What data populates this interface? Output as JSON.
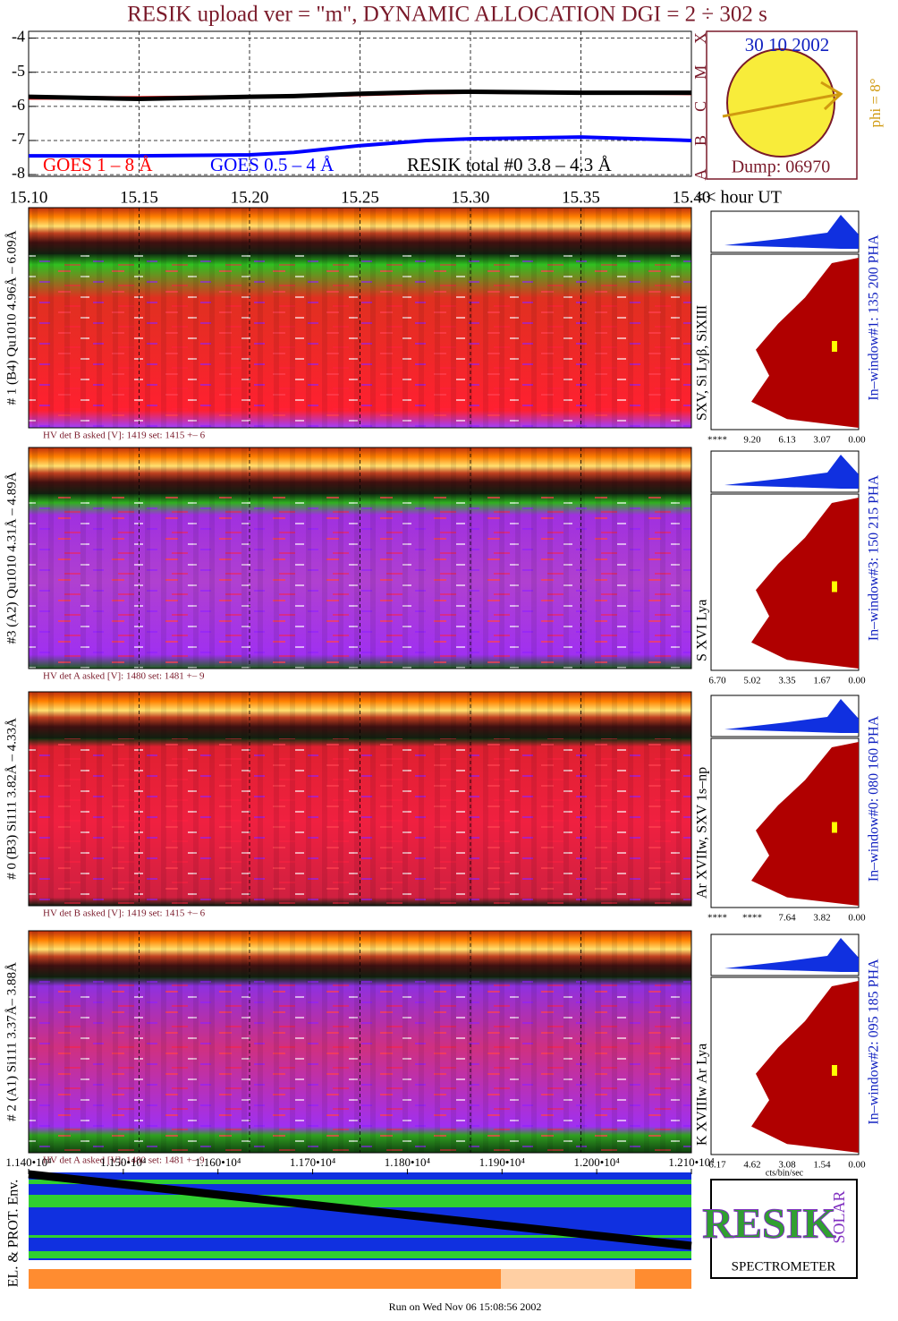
{
  "title": "RESIK upload ver = \"m\", DYNAMIC ALLOCATION  DGI =   2 ÷ 302 s",
  "chart_data": {
    "type": "line",
    "x": [
      15.1,
      15.15,
      15.2,
      15.22,
      15.25,
      15.28,
      15.3,
      15.35,
      15.4
    ],
    "xlim": [
      15.1,
      15.4
    ],
    "xticks": [
      {
        "value": 15.1,
        "label": "15.10"
      },
      {
        "value": 15.15,
        "label": "15.15"
      },
      {
        "value": 15.2,
        "label": "15.20"
      },
      {
        "value": 15.25,
        "label": "15.25"
      },
      {
        "value": 15.3,
        "label": "15.30"
      },
      {
        "value": 15.35,
        "label": "15.35"
      },
      {
        "value": 15.4,
        "label": "15.40"
      }
    ],
    "x_label": "<< hour UT",
    "ylim": [
      -8.05,
      -3.8
    ],
    "yticks": [
      -4,
      -5,
      -6,
      -7,
      -8
    ],
    "grid": true,
    "series": [
      {
        "name": "GOES 1 – 8 Å",
        "color": "#ff0000",
        "values": [
          -5.75,
          -5.75,
          -5.72,
          -5.7,
          -5.65,
          -5.6,
          -5.58,
          -5.6,
          -5.62
        ]
      },
      {
        "name": "GOES 0.5 – 4 Å",
        "color": "#0000ff",
        "values": [
          -7.45,
          -7.45,
          -7.42,
          -7.35,
          -7.15,
          -7.0,
          -6.95,
          -6.9,
          -7.0
        ]
      },
      {
        "name": "RESIK total #0  3.8 – 4.3 Å",
        "color": "#000000",
        "values": [
          -5.72,
          -5.78,
          -5.72,
          -5.7,
          -5.63,
          -5.58,
          -5.57,
          -5.6,
          -5.6
        ]
      }
    ]
  },
  "sun": {
    "date": "30 10 2002",
    "dump": "Dump: 06970",
    "phi": "phi =  8°",
    "classes": [
      "A",
      "B",
      "C",
      "M",
      "X"
    ]
  },
  "detectors": [
    {
      "label": "# 1 (B4) Qu1010 4.96Å – 6.09Å",
      "lines": "SXV, Si Lyβ, SiXIII",
      "hv": "HV det B asked [V]:  1419 set:  1415 +–    6",
      "hist_ticks": [
        "****",
        "9.20",
        "6.13",
        "3.07",
        "0.00"
      ],
      "window": "In–window#1:  135 200 PHA"
    },
    {
      "label": "#3 (A2) Qu1010  4.31Å – 4.89Å",
      "lines": "S XVI Lya",
      "hv": "HV det A asked [V]:  1480 set:  1481 +–    9",
      "hist_ticks": [
        "6.70",
        "5.02",
        "3.35",
        "1.67",
        "0.00"
      ],
      "window": "In–window#3:  150 215 PHA"
    },
    {
      "label": "# 0 (B3) Si111  3.82Å – 4.33Å",
      "lines": "Ar XVIIw,  SXV 1s–np",
      "hv": "HV det B asked [V]:  1419 set:  1415 +–    6",
      "hist_ticks": [
        "****",
        "****",
        "7.64",
        "3.82",
        "0.00"
      ],
      "window": "In–window#0:  080 160 PHA"
    },
    {
      "label": "# 2 (A1) Si111  3.37Å– 3.88Å",
      "lines": "K XVIIIw  Ar Lya",
      "hv": "HV det A asked [V]:  1480 set:  1481 +–    9",
      "hist_ticks": [
        "6.17",
        "4.62",
        "3.08",
        "1.54",
        "0.00"
      ],
      "window": "In–window#2:  095 185 PHA"
    }
  ],
  "hist_unit": "cts/bin/sec",
  "env": {
    "label": "EL. & PROT. Env.",
    "xlim": [
      11400,
      12100
    ],
    "xticks": [
      {
        "value": 11400,
        "label": "1.140•10⁴"
      },
      {
        "value": 11500,
        "label": "1.150•10⁴"
      },
      {
        "value": 11600,
        "label": "1.160•10⁴"
      },
      {
        "value": 11700,
        "label": "1.170•10⁴"
      },
      {
        "value": 11800,
        "label": "1.180•10⁴"
      },
      {
        "value": 11900,
        "label": "1.190•10⁴"
      },
      {
        "value": 12000,
        "label": "1.200•10⁴"
      },
      {
        "value": 12100,
        "label": "1.210•10⁴"
      }
    ]
  },
  "logo": {
    "top": "RESIK",
    "side": "SOLAR",
    "bottom": "SPECTROMETER"
  },
  "footer": "Run on Wed Nov 06 15:08:56 2002"
}
